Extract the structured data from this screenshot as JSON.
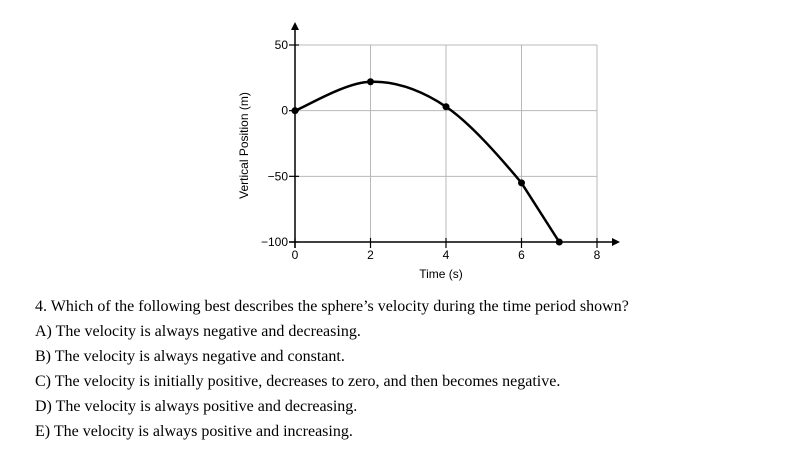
{
  "chart_data": {
    "type": "line",
    "xlabel": "Time (s)",
    "ylabel": "Vertical Position (m)",
    "xlim": [
      0,
      8
    ],
    "ylim": [
      -100,
      50
    ],
    "x_ticks": [
      0,
      2,
      4,
      6,
      8
    ],
    "x_tick_labels": [
      "0",
      "2",
      "4",
      "6",
      "8"
    ],
    "y_ticks": [
      50,
      0,
      -50,
      -100
    ],
    "y_tick_labels": [
      "50",
      "0",
      "−50",
      "−100"
    ],
    "grid": true,
    "series": [
      {
        "x": [
          0,
          2,
          4,
          6,
          7
        ],
        "y": [
          0,
          22,
          3,
          -55,
          -100
        ],
        "markers": true
      }
    ]
  },
  "question": {
    "stem": "4. Which of the following best describes the sphere’s velocity during the time period shown?",
    "options": [
      "A) The velocity is always negative and decreasing.",
      "B) The velocity is always negative and constant.",
      "C) The velocity is initially positive, decreases to zero, and then becomes negative.",
      "D) The velocity is always positive and decreasing.",
      "E) The velocity is always positive and increasing."
    ]
  }
}
